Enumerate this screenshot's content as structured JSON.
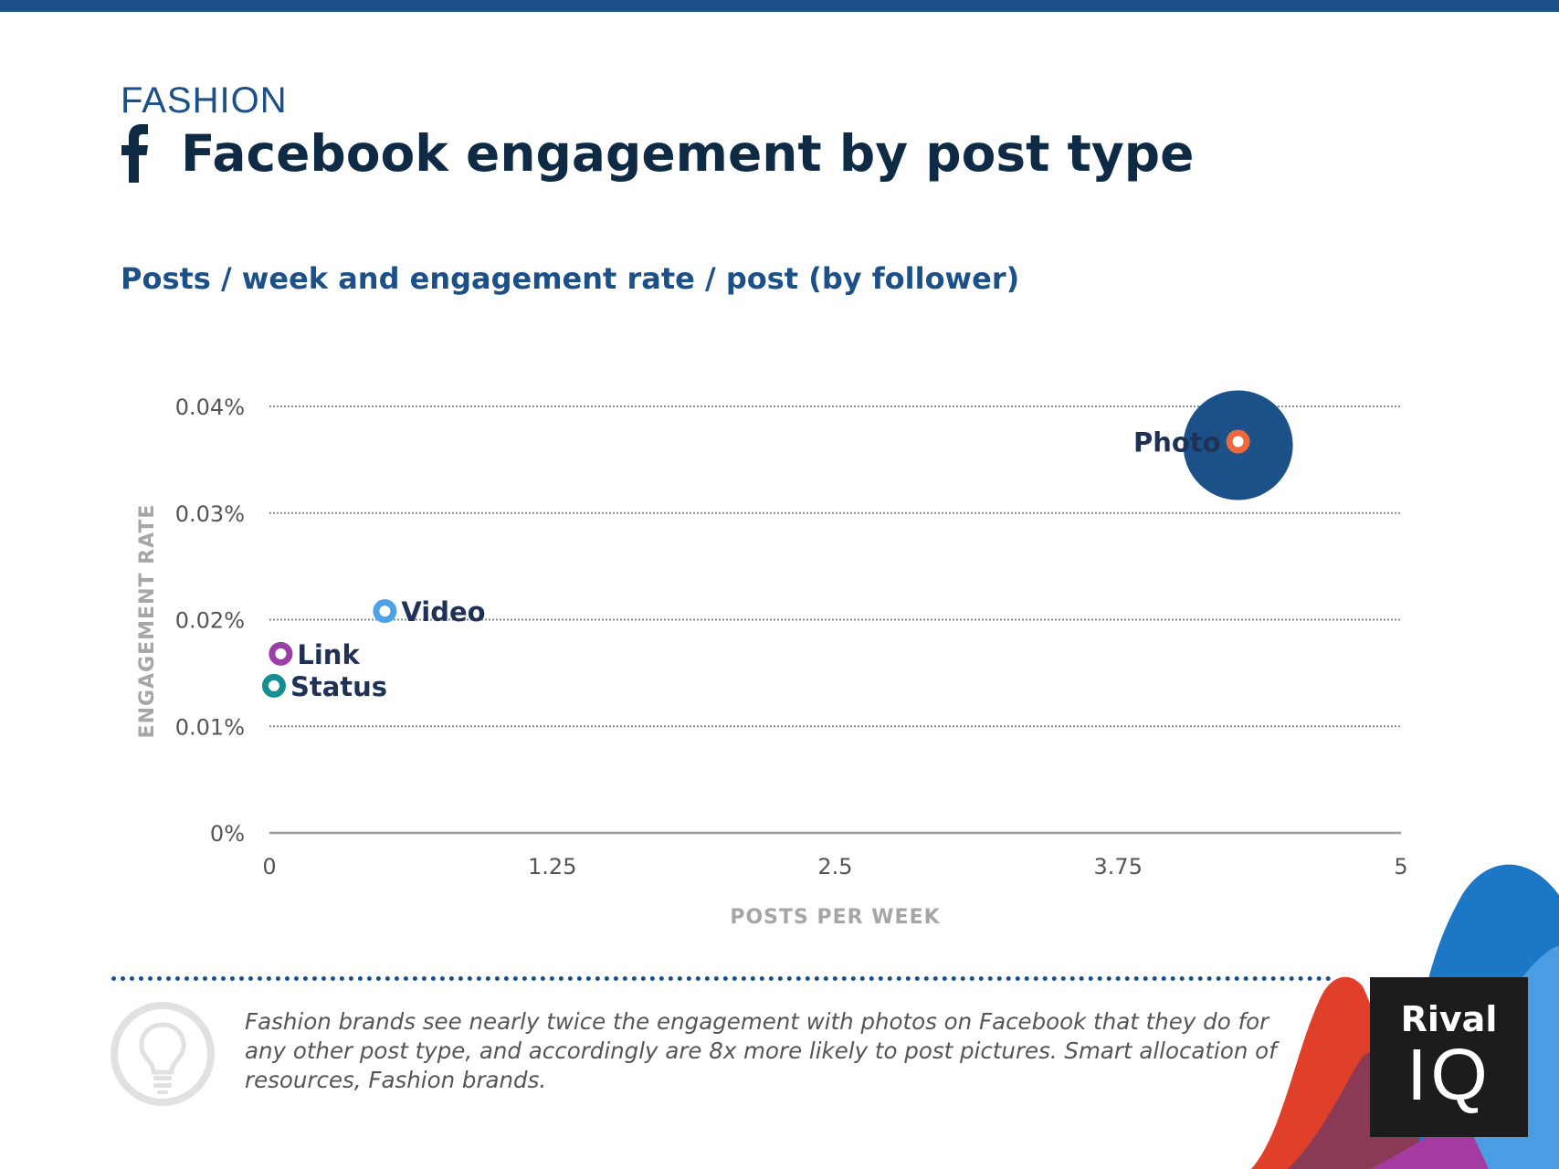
{
  "header": {
    "category": "FASHION",
    "title": "Facebook engagement by post type",
    "subtitle": "Posts / week and engagement rate / post (by follower)"
  },
  "chart_data": {
    "type": "scatter",
    "xlabel": "POSTS PER WEEK",
    "ylabel": "ENGAGEMENT RATE",
    "xlim": [
      0,
      5
    ],
    "ylim": [
      0,
      0.04
    ],
    "x_ticks": [
      {
        "value": 0,
        "label": "0"
      },
      {
        "value": 1.25,
        "label": "1.25"
      },
      {
        "value": 2.5,
        "label": "2.5"
      },
      {
        "value": 3.75,
        "label": "3.75"
      },
      {
        "value": 5,
        "label": "5"
      }
    ],
    "y_ticks": [
      {
        "value": 0,
        "label": "0%"
      },
      {
        "value": 0.01,
        "label": "0.01%"
      },
      {
        "value": 0.02,
        "label": "0.02%"
      },
      {
        "value": 0.03,
        "label": "0.03%"
      },
      {
        "value": 0.04,
        "label": "0.04%"
      }
    ],
    "grid": "horizontal dotted",
    "points": [
      {
        "label": "Photo",
        "x": 4.28,
        "y": 0.0367,
        "color": "#f0673a",
        "bubble": true,
        "bubble_color": "#1b5089"
      },
      {
        "label": "Video",
        "x": 0.51,
        "y": 0.0208,
        "color": "#4ba2e8"
      },
      {
        "label": "Link",
        "x": 0.05,
        "y": 0.0168,
        "color": "#9b3ea8"
      },
      {
        "label": "Status",
        "x": 0.02,
        "y": 0.0138,
        "color": "#148f8f"
      }
    ]
  },
  "footer": {
    "note": "Fashion brands see nearly twice the engagement with photos on Facebook that they do for any other post type, and accordingly are 8x more likely to post pictures. Smart allocation of resources, Fashion brands."
  },
  "logo": {
    "line1": "Rival",
    "line2": "IQ"
  },
  "icons": {
    "social": "facebook-icon",
    "tip": "lightbulb-icon"
  },
  "colors": {
    "brand_blue": "#1b5089",
    "title_navy": "#0e2a45"
  }
}
